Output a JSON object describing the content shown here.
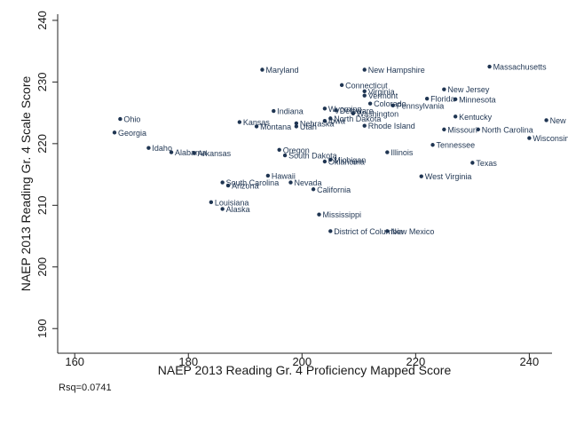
{
  "chart_data": {
    "type": "scatter",
    "title": "",
    "xlabel": "NAEP 2013 Reading Gr. 4 Proficiency Mapped Score",
    "ylabel": "NAEP 2013 Reading Gr. 4 Scale Score",
    "xlim": [
      157,
      244
    ],
    "ylim": [
      186,
      241
    ],
    "xticks": [
      160,
      180,
      200,
      220,
      240
    ],
    "yticks": [
      190,
      200,
      210,
      220,
      230,
      240
    ],
    "annotation": "Rsq=0.0741",
    "marker_color": "#1f3552",
    "points": [
      {
        "label": "Maryland",
        "x": 193,
        "y": 232
      },
      {
        "label": "New Hampshire",
        "x": 211,
        "y": 232
      },
      {
        "label": "Massachusetts",
        "x": 233,
        "y": 232.5
      },
      {
        "label": "Connecticut",
        "x": 207,
        "y": 229.5
      },
      {
        "label": "Virginia",
        "x": 211,
        "y": 228.5
      },
      {
        "label": "Vermont",
        "x": 211,
        "y": 227.8
      },
      {
        "label": "New Jersey",
        "x": 225,
        "y": 228.8
      },
      {
        "label": "Florida",
        "x": 222,
        "y": 227.3
      },
      {
        "label": "Minnesota",
        "x": 227,
        "y": 227.2
      },
      {
        "label": "Colorado",
        "x": 212,
        "y": 226.5
      },
      {
        "label": "Pennsylvania",
        "x": 216,
        "y": 226.2
      },
      {
        "label": "Wyoming",
        "x": 204,
        "y": 225.7
      },
      {
        "label": "Delaware",
        "x": 206,
        "y": 225.4
      },
      {
        "label": "Washington",
        "x": 209,
        "y": 224.9
      },
      {
        "label": "Indiana",
        "x": 195,
        "y": 225.3
      },
      {
        "label": "Kentucky",
        "x": 227,
        "y": 224.4
      },
      {
        "label": "Kansas",
        "x": 189,
        "y": 223.5
      },
      {
        "label": "Nebraska",
        "x": 199,
        "y": 223.3
      },
      {
        "label": "Iowa",
        "x": 204,
        "y": 223.7
      },
      {
        "label": "North Dakota",
        "x": 205,
        "y": 224.1
      },
      {
        "label": "Montana",
        "x": 192,
        "y": 222.8
      },
      {
        "label": "Utah",
        "x": 199,
        "y": 222.8
      },
      {
        "label": "Rhode Island",
        "x": 211,
        "y": 222.9
      },
      {
        "label": "Missouri",
        "x": 225,
        "y": 222.3
      },
      {
        "label": "North Carolina",
        "x": 231,
        "y": 222.3
      },
      {
        "label": "New York",
        "x": 243,
        "y": 223.8
      },
      {
        "label": "Wisconsin",
        "x": 240,
        "y": 220.9
      },
      {
        "label": "Ohio",
        "x": 168,
        "y": 224
      },
      {
        "label": "Georgia",
        "x": 167,
        "y": 221.8
      },
      {
        "label": "Tennessee",
        "x": 223,
        "y": 219.8
      },
      {
        "label": "Idaho",
        "x": 173,
        "y": 219.3
      },
      {
        "label": "Alabama",
        "x": 177,
        "y": 218.6
      },
      {
        "label": "Arkansas",
        "x": 181,
        "y": 218.5
      },
      {
        "label": "Oregon",
        "x": 196,
        "y": 219
      },
      {
        "label": "South Dakota",
        "x": 197,
        "y": 218.1
      },
      {
        "label": "Michigan",
        "x": 205,
        "y": 217.4
      },
      {
        "label": "Oklahoma",
        "x": 204,
        "y": 217.1
      },
      {
        "label": "Illinois",
        "x": 215,
        "y": 218.6
      },
      {
        "label": "Texas",
        "x": 230,
        "y": 216.9
      },
      {
        "label": "Hawaii",
        "x": 194,
        "y": 214.8
      },
      {
        "label": "West Virginia",
        "x": 221,
        "y": 214.7
      },
      {
        "label": "South Carolina",
        "x": 186,
        "y": 213.7
      },
      {
        "label": "Nevada",
        "x": 198,
        "y": 213.7
      },
      {
        "label": "Arizona",
        "x": 187,
        "y": 213.2
      },
      {
        "label": "California",
        "x": 202,
        "y": 212.6
      },
      {
        "label": "Louisiana",
        "x": 184,
        "y": 210.5
      },
      {
        "label": "Alaska",
        "x": 186,
        "y": 209.4
      },
      {
        "label": "Mississippi",
        "x": 203,
        "y": 208.5
      },
      {
        "label": "District of Columbia",
        "x": 205,
        "y": 205.8
      },
      {
        "label": "New Mexico",
        "x": 215,
        "y": 205.8
      }
    ]
  }
}
